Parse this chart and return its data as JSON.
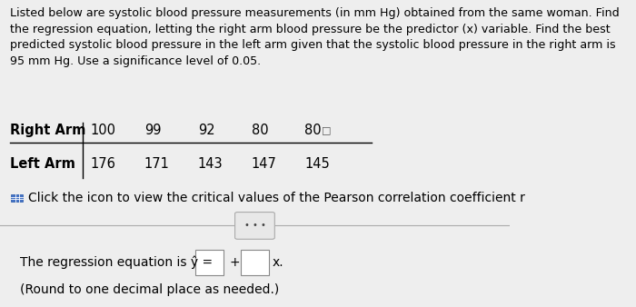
{
  "title_lines": [
    "Listed below are systolic blood pressure measurements (in mm Hg) obtained from the same woman. Find",
    "the regression equation, letting the right arm blood pressure be the predictor (x) variable. Find the best",
    "predicted systolic blood pressure in the left arm given that the systolic blood pressure in the right arm is",
    "95 mm Hg. Use a significance level of 0.05."
  ],
  "right_arm": [
    100,
    99,
    92,
    80,
    80
  ],
  "left_arm": [
    176,
    171,
    143,
    147,
    145
  ],
  "click_icon_text": "Click the icon to view the critical values of the Pearson correlation coefficient r",
  "regression_label": "The regression equation is ŷ =",
  "round_text": "(Round to one decimal place as needed.)",
  "bg_color": "#eeeeee",
  "text_color": "#000000",
  "table_line_color": "#000000",
  "separator_line_color": "#aaaaaa",
  "icon_color": "#4472c4",
  "box_face_color": "#ffffff",
  "box_edge_color": "#888888",
  "btn_face_color": "#e8e8e8",
  "btn_edge_color": "#aaaaaa",
  "font_size_title": 9.1,
  "font_size_table": 10.5,
  "font_size_body": 10.0
}
